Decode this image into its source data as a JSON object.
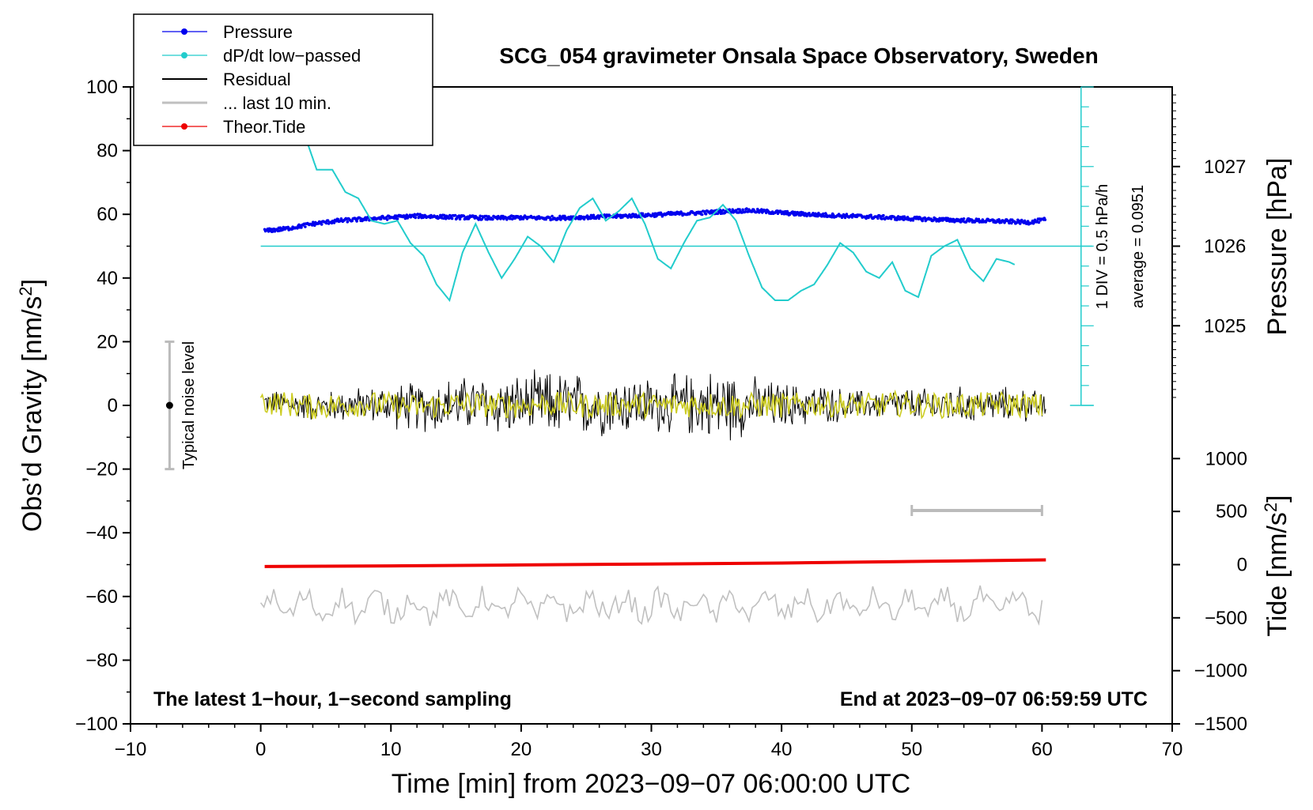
{
  "chart_data": {
    "type": "line",
    "title": "SCG_054 gravimeter Onsala Space Observatory, Sweden",
    "xlabel": "Time [min] from 2023−09−07 06:00:00 UTC",
    "ylabel_left": "Obs’d Gravity [nm/s",
    "ylabel_left_sup": "2",
    "ylabel_left_end": "]",
    "ylabel_right_pressure": "Pressure [hPa]",
    "ylabel_right_tide": "Tide [nm/s",
    "ylabel_right_tide_sup": "2",
    "ylabel_right_tide_end": "]",
    "xlim": [
      -10,
      70
    ],
    "ylim": [
      -100,
      100
    ],
    "x_ticks": [
      "−10",
      "0",
      "10",
      "20",
      "30",
      "40",
      "50",
      "60",
      "70"
    ],
    "y_ticks": [
      "100",
      "80",
      "60",
      "40",
      "20",
      "0",
      "−20",
      "−40",
      "−60",
      "−80",
      "−100"
    ],
    "pressure_axis": {
      "ticks": [
        "1027",
        "1026",
        "1025"
      ],
      "tick_values_on_gravity_scale": [
        75,
        50,
        25
      ]
    },
    "tide_axis": {
      "ticks": [
        "1000",
        "500",
        "0",
        "−500",
        "−1000",
        "−1500"
      ],
      "tick_values_on_gravity_scale": [
        -16.7,
        -33.3,
        -50,
        -66.7,
        -83.3,
        -100
      ]
    },
    "dpdt_scale_note": "1 DIV = 0.5 hPa/h",
    "average_note": "average = 0.0951",
    "noise_label": "Typical noise level",
    "noise_bar": {
      "x": -7,
      "center": 0,
      "low": -20,
      "high": 20
    },
    "last10_bar": {
      "x_start": 50,
      "x_end": 60,
      "y": -33
    },
    "dpdt_baseline": 50,
    "dpdt_ruler": {
      "x": 63,
      "y_low": 0,
      "y_high": 100
    },
    "note_left": "The latest 1−hour, 1−second sampling",
    "note_right": "End at 2023−09−07 06:59:59 UTC",
    "legend": [
      {
        "label": "Pressure",
        "color": "#0000ee",
        "marker": true
      },
      {
        "label": "dP/dt low−passed",
        "color": "#22cccc",
        "marker": true
      },
      {
        "label": "Residual",
        "color": "#000000",
        "marker": false
      },
      {
        "label": "... last 10 min.",
        "color": "#c0c0c0",
        "marker": false
      },
      {
        "label": "Theor.Tide",
        "color": "#ee0000",
        "marker": true
      }
    ],
    "series": [
      {
        "name": "Pressure",
        "color": "#0000ee",
        "x": [
          0.3,
          2,
          4,
          6,
          8,
          10,
          12,
          14,
          16,
          18,
          20,
          22,
          24,
          26,
          28,
          30,
          32,
          34,
          36,
          37.5,
          39,
          41,
          43,
          45,
          47,
          49,
          51,
          53,
          55,
          57,
          59,
          60.3
        ],
        "y": [
          54.8,
          55.5,
          57,
          58,
          58.5,
          59,
          59.5,
          59.2,
          59,
          58.8,
          59,
          58.8,
          59,
          59.2,
          59.5,
          59.8,
          60.2,
          60.5,
          61,
          61.2,
          60.8,
          60.2,
          59.8,
          59.5,
          59.2,
          58.8,
          58.5,
          58.2,
          58,
          57.8,
          57.5,
          58.3
        ]
      },
      {
        "name": "dP/dt low-passed",
        "color": "#22cccc",
        "x": [
          3.2,
          4.3,
          5.5,
          6.5,
          7.5,
          8.5,
          9.5,
          10.5,
          11.5,
          12.5,
          13.5,
          14.5,
          15.5,
          16.5,
          17.5,
          18.5,
          19.5,
          20.5,
          21.5,
          22.5,
          23.5,
          24.5,
          25.5,
          26.5,
          27.5,
          28.5,
          29.5,
          30.5,
          31.5,
          32.5,
          33.5,
          34.5,
          35.5,
          36.5,
          37.5,
          38.5,
          39.5,
          40.5,
          41.5,
          42.5,
          43.5,
          44.5,
          45.5,
          46.5,
          47.5,
          48.5,
          49.5,
          50.5,
          51.5,
          52.5,
          53.5,
          54.5,
          55.5,
          56.5,
          57.5,
          58.0
        ],
        "y": [
          87,
          74,
          74,
          67,
          65,
          58,
          57,
          58,
          51,
          47,
          38,
          33,
          48,
          57,
          48,
          40,
          46,
          53,
          50,
          45,
          55,
          62,
          65,
          58,
          61,
          65,
          57,
          46,
          43,
          51,
          58,
          59,
          63,
          58,
          47,
          37,
          33,
          33,
          36,
          38,
          44,
          51,
          48,
          42,
          40,
          45,
          36,
          34,
          47,
          50,
          52,
          43,
          39,
          46,
          45,
          44
        ]
      },
      {
        "name": "Theor.Tide",
        "color": "#ee0000",
        "x": [
          0.3,
          10,
          20,
          30,
          40,
          50,
          60.3
        ],
        "y": [
          -50.6,
          -50.4,
          -50.1,
          -49.8,
          -49.5,
          -49.0,
          -48.5
        ]
      }
    ],
    "residual_envelope": {
      "name": "Residual",
      "color": "#000000",
      "x": [
        0.3,
        2,
        4,
        6,
        8,
        10,
        12,
        14,
        16,
        18,
        20,
        22,
        24,
        26,
        28,
        30,
        32,
        34,
        35.5,
        37,
        39,
        41,
        43,
        45,
        47,
        49,
        51,
        53,
        55,
        57,
        59,
        60.3
      ],
      "y": [
        1,
        0.5,
        -0.5,
        0,
        0.5,
        0,
        -0.5,
        0,
        0.5,
        0,
        0,
        0.5,
        0,
        0,
        0.5,
        0,
        0,
        0.5,
        0,
        0,
        0,
        0,
        0.5,
        0,
        0,
        0.5,
        0,
        0,
        0,
        0.5,
        0,
        -0.5
      ],
      "amplitude": [
        4,
        5,
        5,
        6,
        6,
        8,
        9,
        10,
        10,
        11,
        11,
        12,
        12,
        11,
        11,
        10,
        11,
        12,
        14,
        11,
        9,
        8,
        7,
        6,
        5,
        6,
        6,
        7,
        6,
        6,
        6,
        5
      ]
    },
    "last10_trace": {
      "name": "... last 10 min.",
      "color": "#c0c0c0",
      "x_start": 0,
      "x_end": 60,
      "baseline": -63,
      "amplitude": 5
    },
    "filtered_residual": {
      "color": "#cccc22",
      "x_start": 0,
      "x_end": 60,
      "amplitude": 4
    }
  }
}
